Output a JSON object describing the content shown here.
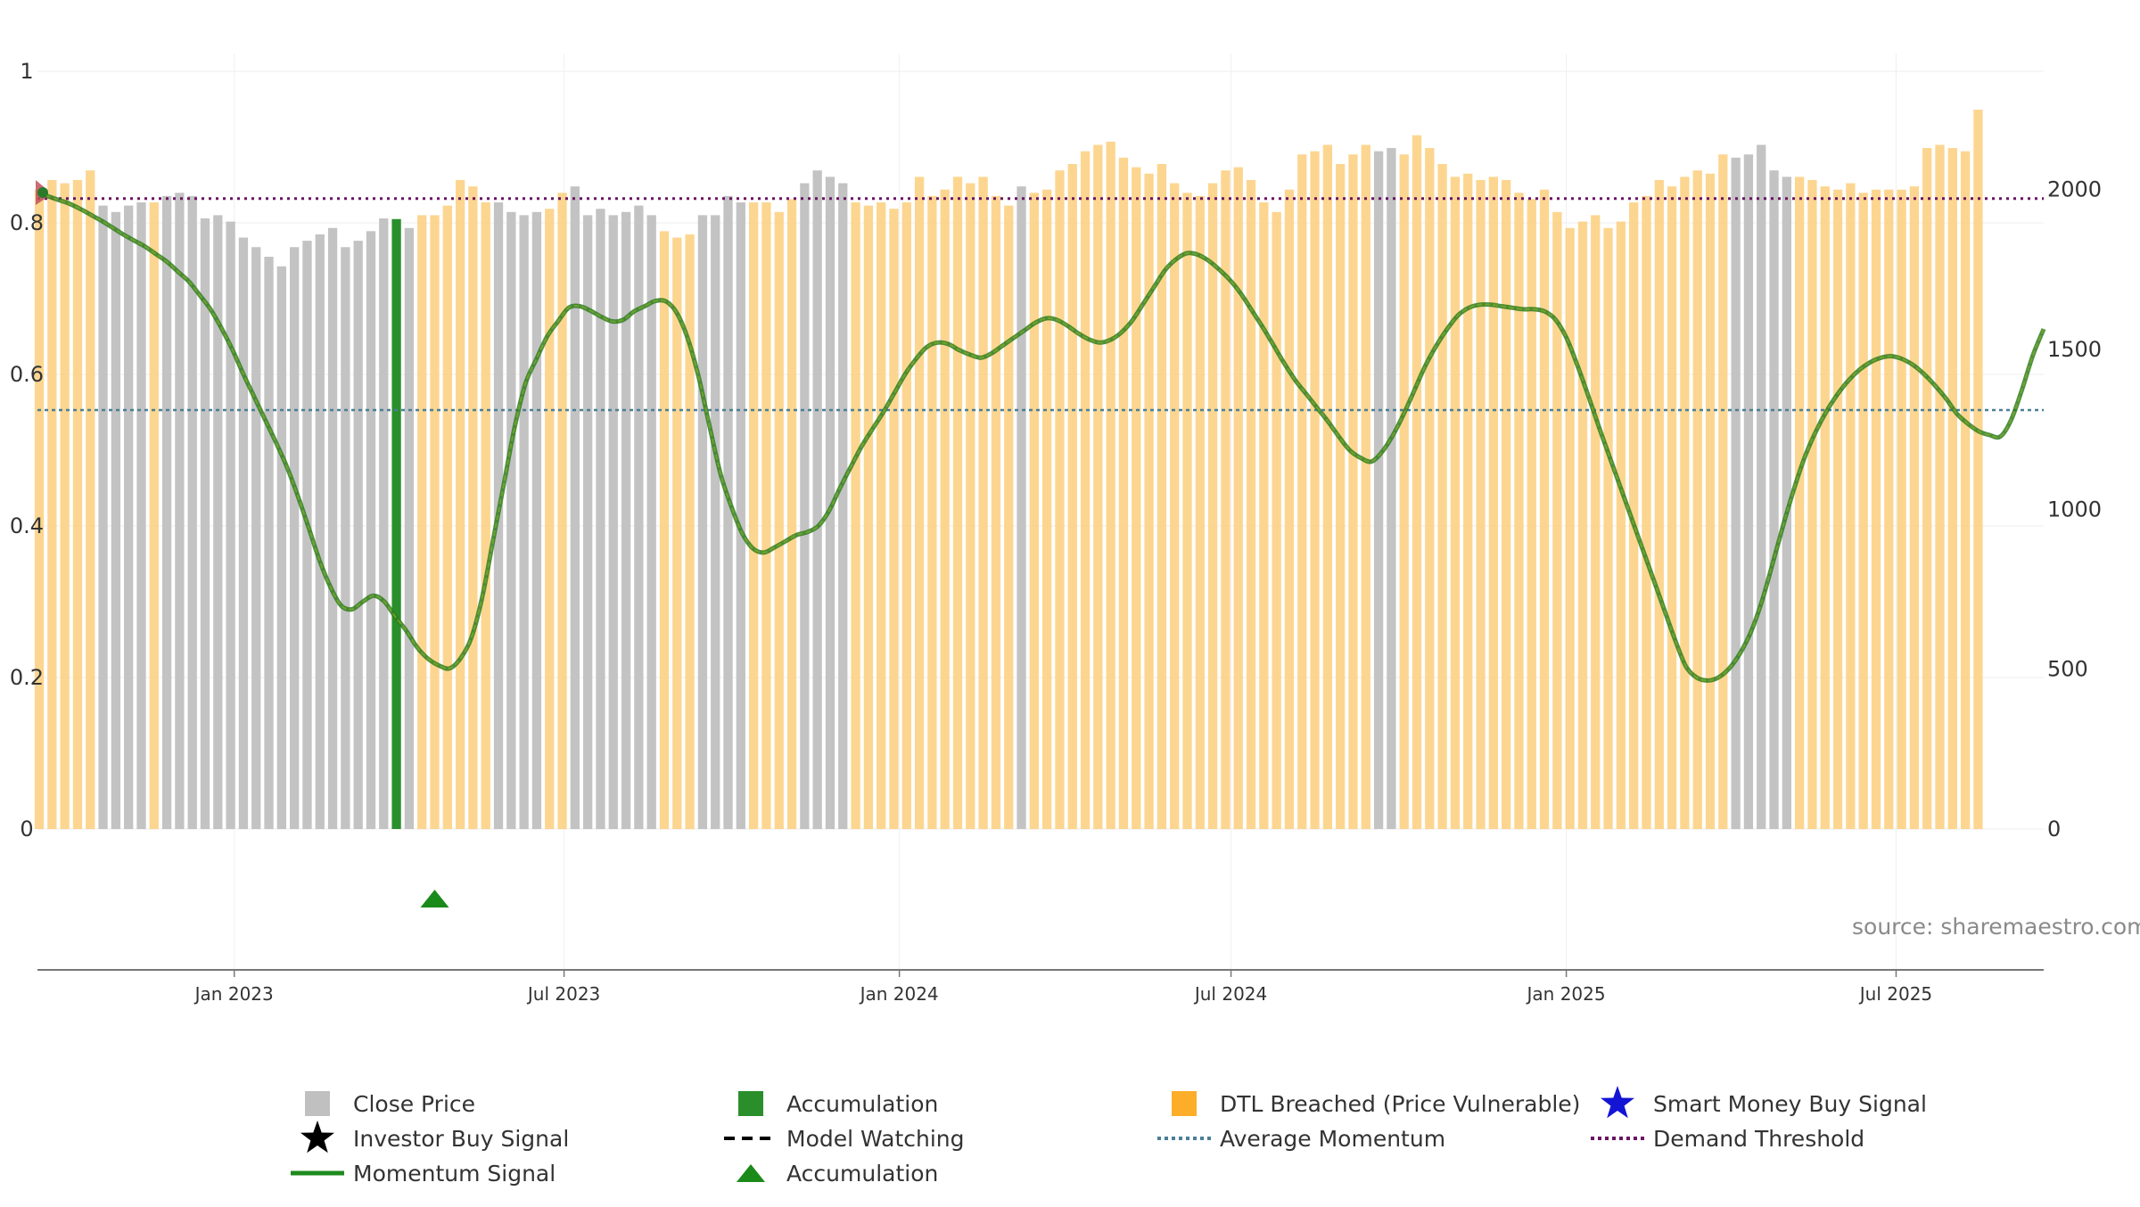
{
  "source_text": "source: sharemaestro.com",
  "colors": {
    "close_price": "#c0c0c0",
    "accumulation_bar": "#2a8f2a",
    "dtl_breached": "#fccf7c",
    "momentum": "#2f7d1f",
    "momentum_highlight": "#7fae2a",
    "average_momentum": "#4a7f96",
    "demand_threshold": "#6b1463",
    "accumulation_marker": "#1a8a1a",
    "smart_money": "#1414d4",
    "investor_buy": "#000000",
    "model_watching": "#000000",
    "start_marker": "#c0525a"
  },
  "legend": [
    {
      "key": "close_price",
      "label": "Close Price",
      "icon": "gray-square-icon"
    },
    {
      "key": "accumulation",
      "label": "Accumulation",
      "icon": "green-square-icon"
    },
    {
      "key": "dtl",
      "label": "DTL Breached (Price Vulnerable)",
      "icon": "orange-square-icon"
    },
    {
      "key": "smart_money",
      "label": "Smart Money Buy Signal",
      "icon": "blue-star-icon"
    },
    {
      "key": "investor_buy",
      "label": "Investor Buy Signal",
      "icon": "black-star-icon"
    },
    {
      "key": "model_watching",
      "label": "Model Watching",
      "icon": "black-dashed-line-icon"
    },
    {
      "key": "average_momentum",
      "label": "Average Momentum",
      "icon": "blue-dotted-line-icon"
    },
    {
      "key": "demand_threshold",
      "label": "Demand Threshold",
      "icon": "purple-dotted-line-icon"
    },
    {
      "key": "momentum",
      "label": "Momentum Signal",
      "icon": "green-line-icon"
    },
    {
      "key": "accumulation_marker",
      "label": "Accumulation",
      "icon": "green-triangle-icon"
    }
  ],
  "chart_data": {
    "type": "bar",
    "x_range": [
      "2022-09-15",
      "2025-09-20"
    ],
    "x_ticks": [
      "Jan 2023",
      "Jul 2023",
      "Jan 2024",
      "Jul 2024",
      "Jan 2025",
      "Jul 2025"
    ],
    "x_tick_dates": [
      "2023-01-01",
      "2023-07-01",
      "2024-01-01",
      "2024-07-01",
      "2025-01-01",
      "2025-07-01"
    ],
    "left_axis": {
      "ylim": [
        0,
        1
      ],
      "ticks": [
        "0",
        "0.2",
        "0.4",
        "0.6",
        "0.8",
        "1"
      ],
      "tick_values": [
        0,
        0.2,
        0.4,
        0.6,
        0.8,
        1
      ]
    },
    "right_axis": {
      "ylim": [
        0,
        2370
      ],
      "ticks": [
        "0",
        "500",
        "1000",
        "1500",
        "2000"
      ],
      "tick_values": [
        0,
        500,
        1000,
        1500,
        2000
      ]
    },
    "bar_dates_start": "2022-09-16",
    "bar_interval_days": 7,
    "close_price": [
      2000,
      2030,
      2020,
      2030,
      2060,
      1950,
      1930,
      1950,
      1960,
      1960,
      1980,
      1990,
      1980,
      1910,
      1920,
      1900,
      1850,
      1820,
      1790,
      1760,
      1820,
      1840,
      1860,
      1880,
      1820,
      1840,
      1870,
      1910,
      1900,
      1880,
      1920,
      1920,
      1950,
      2030,
      2010,
      1960,
      1960,
      1930,
      1920,
      1930,
      1940,
      1990,
      2010,
      1920,
      1940,
      1920,
      1930,
      1950,
      1920,
      1870,
      1850,
      1860,
      1920,
      1920,
      1980,
      1960,
      1960,
      1960,
      1930,
      1970,
      2020,
      2060,
      2040,
      2020,
      1960,
      1950,
      1960,
      1940,
      1960,
      2040,
      1980,
      2000,
      2040,
      2020,
      2040,
      1980,
      1950,
      2010,
      1990,
      2000,
      2060,
      2080,
      2120,
      2140,
      2150,
      2100,
      2070,
      2050,
      2080,
      2020,
      1990,
      1980,
      2020,
      2060,
      2070,
      2030,
      1960,
      1930,
      2000,
      2110,
      2120,
      2140,
      2080,
      2110,
      2140,
      2120,
      2130,
      2110,
      2170,
      2130,
      2080,
      2040,
      2050,
      2030,
      2040,
      2030,
      1990,
      1970,
      2000,
      1930,
      1880,
      1900,
      1920,
      1880,
      1900,
      1960,
      1980,
      2030,
      2010,
      2040,
      2060,
      2050,
      2110,
      2100,
      2110,
      2140,
      2060,
      2040,
      2040,
      2030,
      2010,
      2000,
      2020,
      1990,
      2000,
      2000,
      2000,
      2010,
      2130,
      2140,
      2130,
      2120,
      2250
    ],
    "bar_status": "dddddggggdggggggggggggggggggagddddddggggddgggggggdddggggddddggggdddddddddddddgdddddddddddddddddddddddddddggddddddddddddddddddddddddddgggggdddddddddddddddddddddd",
    "momentum": [
      0.84,
      0.835,
      0.83,
      0.825,
      0.818,
      0.81,
      0.802,
      0.793,
      0.784,
      0.776,
      0.768,
      0.758,
      0.748,
      0.735,
      0.722,
      0.704,
      0.685,
      0.66,
      0.632,
      0.6,
      0.57,
      0.54,
      0.51,
      0.478,
      0.44,
      0.398,
      0.355,
      0.32,
      0.295,
      0.29,
      0.3,
      0.308,
      0.3,
      0.28,
      0.262,
      0.24,
      0.225,
      0.216,
      0.212,
      0.225,
      0.252,
      0.305,
      0.38,
      0.455,
      0.53,
      0.588,
      0.62,
      0.65,
      0.67,
      0.688,
      0.69,
      0.684,
      0.676,
      0.67,
      0.672,
      0.683,
      0.69,
      0.697,
      0.696,
      0.68,
      0.646,
      0.595,
      0.53,
      0.468,
      0.425,
      0.39,
      0.37,
      0.365,
      0.372,
      0.38,
      0.388,
      0.392,
      0.4,
      0.42,
      0.45,
      0.478,
      0.505,
      0.528,
      0.55,
      0.575,
      0.6,
      0.62,
      0.636,
      0.642,
      0.64,
      0.632,
      0.626,
      0.622,
      0.628,
      0.638,
      0.648,
      0.658,
      0.668,
      0.674,
      0.672,
      0.664,
      0.654,
      0.646,
      0.642,
      0.646,
      0.656,
      0.672,
      0.694,
      0.716,
      0.738,
      0.752,
      0.76,
      0.758,
      0.75,
      0.738,
      0.724,
      0.706,
      0.684,
      0.662,
      0.638,
      0.614,
      0.592,
      0.574,
      0.556,
      0.538,
      0.518,
      0.5,
      0.49,
      0.485,
      0.498,
      0.52,
      0.548,
      0.58,
      0.612,
      0.638,
      0.66,
      0.678,
      0.688,
      0.692,
      0.692,
      0.69,
      0.688,
      0.686,
      0.686,
      0.683,
      0.672,
      0.648,
      0.612,
      0.572,
      0.53,
      0.49,
      0.45,
      0.41,
      0.37,
      0.33,
      0.29,
      0.25,
      0.215,
      0.2,
      0.196,
      0.2,
      0.212,
      0.232,
      0.26,
      0.3,
      0.35,
      0.402,
      0.45,
      0.492,
      0.525,
      0.552,
      0.574,
      0.592,
      0.606,
      0.616,
      0.622,
      0.624,
      0.62,
      0.612,
      0.6,
      0.585,
      0.568,
      0.548,
      0.535,
      0.525,
      0.52,
      0.518,
      0.54,
      0.58,
      0.625,
      0.66
    ],
    "average_momentum": 0.553,
    "demand_threshold": 0.832,
    "accumulation_marker_dates": [
      "2023-04-21"
    ],
    "accumulation_bar_value": 0.805
  }
}
